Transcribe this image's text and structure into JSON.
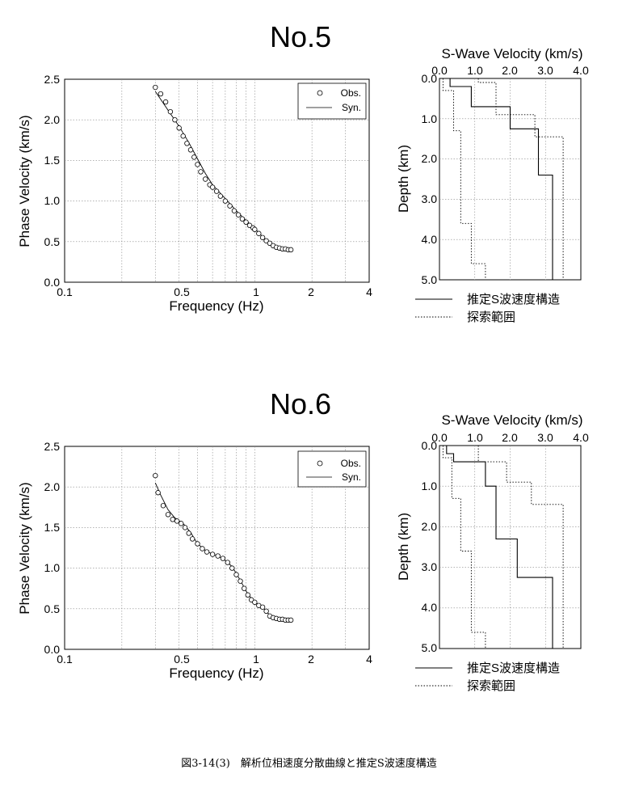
{
  "figure": {
    "caption": "図3-14(3)　解析位相速度分散曲線と推定S波速度構造"
  },
  "panels": [
    {
      "station_title": "No.5",
      "dispersion": {
        "xlabel": "Frequency (Hz)",
        "ylabel": "Phase Velocity (km/s)",
        "x_tick_labels": [
          "0.1",
          "0.5",
          "1",
          "2",
          "4"
        ],
        "x_tick_values": [
          0.1,
          0.5,
          1,
          2,
          4
        ],
        "y_tick_labels": [
          "0.0",
          "0.5",
          "1.0",
          "1.5",
          "2.0",
          "2.5"
        ],
        "y_tick_values": [
          0,
          0.5,
          1.0,
          1.5,
          2.0,
          2.5
        ],
        "legend_obs": "Obs.",
        "legend_syn": "Syn."
      },
      "profile": {
        "title": "S-Wave Velocity (km/s)",
        "ylabel": "Depth (km)",
        "x_tick_labels": [
          "0.0",
          "1.0",
          "2.0",
          "3.0",
          "4.0"
        ],
        "x_tick_values": [
          0,
          1,
          2,
          3,
          4
        ],
        "y_tick_labels": [
          "0.0",
          "1.0",
          "2.0",
          "3.0",
          "4.0",
          "5.0"
        ],
        "y_tick_values": [
          0,
          1,
          2,
          3,
          4,
          5
        ],
        "legend_est": "推定S波速度構造",
        "legend_range": "探索範囲"
      }
    },
    {
      "station_title": "No.6",
      "dispersion": {
        "xlabel": "Frequency (Hz)",
        "ylabel": "Phase Velocity (km/s)",
        "x_tick_labels": [
          "0.1",
          "0.5",
          "1",
          "2",
          "4"
        ],
        "x_tick_values": [
          0.1,
          0.5,
          1,
          2,
          4
        ],
        "y_tick_labels": [
          "0.0",
          "0.5",
          "1.0",
          "1.5",
          "2.0",
          "2.5"
        ],
        "y_tick_values": [
          0,
          0.5,
          1.0,
          1.5,
          2.0,
          2.5
        ],
        "legend_obs": "Obs.",
        "legend_syn": "Syn."
      },
      "profile": {
        "title": "S-Wave Velocity (km/s)",
        "ylabel": "Depth (km)",
        "x_tick_labels": [
          "0.0",
          "1.0",
          "2.0",
          "3.0",
          "4.0"
        ],
        "x_tick_values": [
          0,
          1,
          2,
          3,
          4
        ],
        "y_tick_labels": [
          "0.0",
          "1.0",
          "2.0",
          "3.0",
          "4.0",
          "5.0"
        ],
        "y_tick_values": [
          0,
          1,
          2,
          3,
          4,
          5
        ],
        "legend_est": "推定S波速度構造",
        "legend_range": "探索範囲"
      }
    }
  ],
  "chart_data": [
    {
      "type": "scatter",
      "title": "No.5",
      "xlabel": "Frequency (Hz)",
      "ylabel": "Phase Velocity (km/s)",
      "x_scale": "log",
      "xlim": [
        0.1,
        4
      ],
      "ylim": [
        0,
        2.5
      ],
      "grid": true,
      "legend": "top-right",
      "series": [
        {
          "name": "Obs.",
          "style": "open-circle",
          "x": [
            0.3,
            0.32,
            0.34,
            0.36,
            0.38,
            0.4,
            0.42,
            0.44,
            0.46,
            0.48,
            0.5,
            0.52,
            0.55,
            0.58,
            0.6,
            0.63,
            0.66,
            0.7,
            0.74,
            0.78,
            0.82,
            0.86,
            0.9,
            0.94,
            0.98,
            1.0,
            1.05,
            1.1,
            1.15,
            1.2,
            1.25,
            1.3,
            1.35,
            1.4,
            1.45,
            1.5,
            1.55
          ],
          "y": [
            2.4,
            2.32,
            2.22,
            2.1,
            2.0,
            1.9,
            1.8,
            1.71,
            1.63,
            1.54,
            1.45,
            1.36,
            1.27,
            1.2,
            1.17,
            1.12,
            1.06,
            1.0,
            0.94,
            0.88,
            0.83,
            0.78,
            0.74,
            0.7,
            0.67,
            0.65,
            0.6,
            0.55,
            0.51,
            0.48,
            0.45,
            0.43,
            0.42,
            0.41,
            0.41,
            0.4,
            0.4
          ]
        },
        {
          "name": "Syn.",
          "style": "line",
          "x": [
            0.3,
            0.35,
            0.4,
            0.45,
            0.5,
            0.55,
            0.6,
            0.7,
            0.8,
            0.9,
            1.0,
            1.1,
            1.2,
            1.3,
            1.4,
            1.55
          ],
          "y": [
            2.35,
            2.12,
            1.92,
            1.72,
            1.52,
            1.34,
            1.2,
            1.03,
            0.88,
            0.76,
            0.66,
            0.56,
            0.49,
            0.44,
            0.41,
            0.4
          ]
        }
      ]
    },
    {
      "type": "line",
      "title": "S-Wave Velocity (km/s)",
      "xlabel": "",
      "ylabel": "Depth (km)",
      "xlim": [
        0,
        4
      ],
      "ylim": [
        5,
        0
      ],
      "grid": true,
      "series": [
        {
          "name": "推定S波速度構造",
          "style": "solid",
          "layers": [
            {
              "vs": 0.3,
              "top": 0,
              "bottom": 0.2
            },
            {
              "vs": 0.9,
              "top": 0.2,
              "bottom": 0.7
            },
            {
              "vs": 2.0,
              "top": 0.7,
              "bottom": 1.25
            },
            {
              "vs": 2.8,
              "top": 1.25,
              "bottom": 2.4
            },
            {
              "vs": 3.2,
              "top": 2.4,
              "bottom": 5.0
            }
          ]
        },
        {
          "name": "探索範囲 (min)",
          "style": "dotted",
          "layers": [
            {
              "vs": 0.1,
              "top": 0,
              "bottom": 0.3
            },
            {
              "vs": 0.4,
              "top": 0.3,
              "bottom": 1.3
            },
            {
              "vs": 0.6,
              "top": 1.3,
              "bottom": 3.6
            },
            {
              "vs": 0.9,
              "top": 3.6,
              "bottom": 4.6
            },
            {
              "vs": 1.3,
              "top": 4.6,
              "bottom": 5.0
            }
          ]
        },
        {
          "name": "探索範囲 (max)",
          "style": "dotted",
          "layers": [
            {
              "vs": 1.1,
              "top": 0,
              "bottom": 0.1
            },
            {
              "vs": 1.6,
              "top": 0.1,
              "bottom": 0.9
            },
            {
              "vs": 2.7,
              "top": 0.9,
              "bottom": 1.45
            },
            {
              "vs": 3.5,
              "top": 1.45,
              "bottom": 5.0
            }
          ]
        }
      ]
    },
    {
      "type": "scatter",
      "title": "No.6",
      "xlabel": "Frequency (Hz)",
      "ylabel": "Phase Velocity (km/s)",
      "x_scale": "log",
      "xlim": [
        0.1,
        4
      ],
      "ylim": [
        0,
        2.5
      ],
      "grid": true,
      "legend": "top-right",
      "series": [
        {
          "name": "Obs.",
          "style": "open-circle",
          "x": [
            0.3,
            0.31,
            0.33,
            0.35,
            0.37,
            0.39,
            0.41,
            0.43,
            0.45,
            0.47,
            0.5,
            0.53,
            0.56,
            0.6,
            0.64,
            0.68,
            0.72,
            0.76,
            0.8,
            0.84,
            0.88,
            0.92,
            0.96,
            1.0,
            1.05,
            1.1,
            1.15,
            1.2,
            1.25,
            1.3,
            1.35,
            1.4,
            1.45,
            1.5,
            1.55
          ],
          "y": [
            2.14,
            1.93,
            1.77,
            1.66,
            1.6,
            1.58,
            1.55,
            1.5,
            1.43,
            1.36,
            1.3,
            1.24,
            1.2,
            1.17,
            1.15,
            1.12,
            1.07,
            1.0,
            0.92,
            0.84,
            0.75,
            0.67,
            0.61,
            0.58,
            0.54,
            0.52,
            0.47,
            0.41,
            0.39,
            0.38,
            0.37,
            0.37,
            0.36,
            0.36,
            0.36
          ]
        },
        {
          "name": "Syn.",
          "style": "line",
          "x": [
            0.3,
            0.32,
            0.35,
            0.38,
            0.42,
            0.46,
            0.5,
            0.55,
            0.6,
            0.68,
            0.76,
            0.84,
            0.92,
            1.0,
            1.1,
            1.2,
            1.3,
            1.4,
            1.55
          ],
          "y": [
            2.05,
            1.9,
            1.72,
            1.62,
            1.55,
            1.44,
            1.3,
            1.22,
            1.17,
            1.12,
            1.02,
            0.85,
            0.68,
            0.58,
            0.52,
            0.42,
            0.38,
            0.37,
            0.36
          ]
        }
      ]
    },
    {
      "type": "line",
      "title": "S-Wave Velocity (km/s)",
      "xlabel": "",
      "ylabel": "Depth (km)",
      "xlim": [
        0,
        4
      ],
      "ylim": [
        5,
        0
      ],
      "grid": true,
      "series": [
        {
          "name": "推定S波速度構造",
          "style": "solid",
          "layers": [
            {
              "vs": 0.2,
              "top": 0,
              "bottom": 0.2
            },
            {
              "vs": 0.4,
              "top": 0.2,
              "bottom": 0.4
            },
            {
              "vs": 1.3,
              "top": 0.4,
              "bottom": 1.0
            },
            {
              "vs": 1.6,
              "top": 1.0,
              "bottom": 2.3
            },
            {
              "vs": 2.2,
              "top": 2.3,
              "bottom": 3.25
            },
            {
              "vs": 3.2,
              "top": 3.25,
              "bottom": 5.0
            }
          ]
        },
        {
          "name": "探索範囲 (min)",
          "style": "dotted",
          "layers": [
            {
              "vs": 0.1,
              "top": 0,
              "bottom": 0.3
            },
            {
              "vs": 0.35,
              "top": 0.3,
              "bottom": 1.3
            },
            {
              "vs": 0.6,
              "top": 1.3,
              "bottom": 2.6
            },
            {
              "vs": 0.9,
              "top": 2.6,
              "bottom": 4.6
            },
            {
              "vs": 1.3,
              "top": 4.6,
              "bottom": 5.0
            }
          ]
        },
        {
          "name": "探索範囲 (max)",
          "style": "dotted",
          "layers": [
            {
              "vs": 1.1,
              "top": 0,
              "bottom": 0.4
            },
            {
              "vs": 1.9,
              "top": 0.4,
              "bottom": 0.9
            },
            {
              "vs": 2.6,
              "top": 0.9,
              "bottom": 1.45
            },
            {
              "vs": 3.5,
              "top": 1.45,
              "bottom": 5.0
            }
          ]
        }
      ]
    }
  ]
}
